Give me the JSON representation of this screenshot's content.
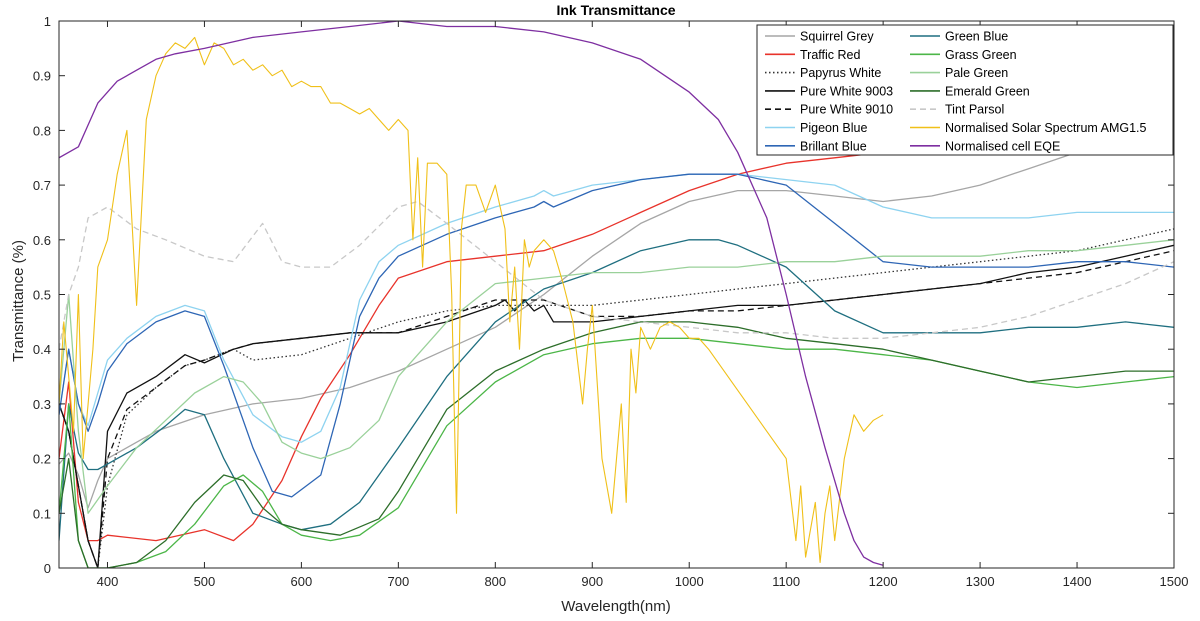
{
  "chart_data": {
    "type": "line",
    "title": "Ink Transmittance",
    "xlabel": "Wavelength(nm)",
    "ylabel": "Transmittance (%)",
    "xlim": [
      350,
      1500
    ],
    "ylim": [
      0,
      1
    ],
    "xticks": [
      400,
      500,
      600,
      700,
      800,
      900,
      1000,
      1100,
      1200,
      1300,
      1400,
      1500
    ],
    "yticks": [
      0,
      0.1,
      0.2,
      0.3,
      0.4,
      0.5,
      0.6,
      0.7,
      0.8,
      0.9,
      1
    ],
    "grid": false,
    "legend_position": "top-right",
    "legend_columns": 2,
    "series": [
      {
        "name": "Squirrel Grey",
        "color": "#a6a6a6",
        "style": "solid",
        "x": [
          350,
          360,
          370,
          380,
          390,
          400,
          420,
          450,
          500,
          550,
          600,
          650,
          700,
          750,
          800,
          850,
          900,
          950,
          1000,
          1050,
          1100,
          1150,
          1200,
          1250,
          1300,
          1350,
          1400,
          1450,
          1500
        ],
        "y": [
          0.19,
          0.21,
          0.17,
          0.11,
          0.16,
          0.2,
          0.22,
          0.25,
          0.28,
          0.3,
          0.31,
          0.33,
          0.36,
          0.4,
          0.44,
          0.5,
          0.57,
          0.63,
          0.67,
          0.69,
          0.69,
          0.68,
          0.67,
          0.68,
          0.7,
          0.73,
          0.76,
          0.79,
          0.82
        ]
      },
      {
        "name": "Traffic Red",
        "color": "#e8332b",
        "style": "solid",
        "x": [
          350,
          360,
          370,
          380,
          390,
          400,
          450,
          500,
          530,
          550,
          580,
          600,
          620,
          650,
          680,
          700,
          750,
          800,
          850,
          900,
          950,
          1000,
          1050,
          1100,
          1150,
          1200,
          1250,
          1300,
          1400,
          1500
        ],
        "y": [
          0.2,
          0.34,
          0.12,
          0.05,
          0.05,
          0.06,
          0.05,
          0.07,
          0.05,
          0.08,
          0.16,
          0.24,
          0.31,
          0.39,
          0.48,
          0.53,
          0.56,
          0.57,
          0.58,
          0.61,
          0.65,
          0.69,
          0.72,
          0.74,
          0.75,
          0.76,
          0.77,
          0.78,
          0.8,
          0.82
        ]
      },
      {
        "name": "Papyrus White",
        "color": "#333333",
        "style": "dotted",
        "x": [
          350,
          360,
          370,
          380,
          390,
          400,
          420,
          450,
          480,
          500,
          530,
          550,
          600,
          650,
          700,
          750,
          800,
          850,
          900,
          950,
          1000,
          1050,
          1100,
          1150,
          1200,
          1250,
          1300,
          1350,
          1400,
          1450,
          1500
        ],
        "y": [
          0.3,
          0.25,
          0.15,
          0.05,
          0.0,
          0.15,
          0.28,
          0.33,
          0.37,
          0.38,
          0.4,
          0.38,
          0.39,
          0.42,
          0.45,
          0.47,
          0.48,
          0.48,
          0.48,
          0.49,
          0.5,
          0.51,
          0.52,
          0.53,
          0.54,
          0.55,
          0.56,
          0.57,
          0.58,
          0.6,
          0.62
        ]
      },
      {
        "name": "Pure White 9003",
        "color": "#111111",
        "style": "solid",
        "x": [
          350,
          360,
          370,
          380,
          390,
          400,
          420,
          450,
          480,
          500,
          530,
          550,
          600,
          650,
          700,
          750,
          800,
          810,
          820,
          830,
          840,
          850,
          860,
          900,
          950,
          1000,
          1050,
          1100,
          1150,
          1200,
          1250,
          1300,
          1350,
          1400,
          1450,
          1500
        ],
        "y": [
          0.3,
          0.25,
          0.15,
          0.05,
          0.0,
          0.25,
          0.32,
          0.35,
          0.39,
          0.375,
          0.4,
          0.41,
          0.42,
          0.43,
          0.43,
          0.45,
          0.48,
          0.49,
          0.47,
          0.49,
          0.47,
          0.48,
          0.45,
          0.45,
          0.46,
          0.47,
          0.48,
          0.48,
          0.49,
          0.5,
          0.51,
          0.52,
          0.54,
          0.55,
          0.57,
          0.59
        ]
      },
      {
        "name": "Pure White 9010",
        "color": "#111111",
        "style": "dashed",
        "x": [
          350,
          360,
          370,
          380,
          390,
          400,
          420,
          450,
          480,
          500,
          530,
          550,
          600,
          650,
          700,
          750,
          800,
          850,
          900,
          950,
          1000,
          1050,
          1100,
          1150,
          1200,
          1250,
          1300,
          1350,
          1400,
          1450,
          1500
        ],
        "y": [
          0.3,
          0.25,
          0.15,
          0.05,
          0.0,
          0.2,
          0.29,
          0.33,
          0.37,
          0.38,
          0.4,
          0.41,
          0.42,
          0.43,
          0.43,
          0.46,
          0.49,
          0.49,
          0.46,
          0.46,
          0.47,
          0.47,
          0.48,
          0.49,
          0.5,
          0.51,
          0.52,
          0.53,
          0.54,
          0.56,
          0.58
        ]
      },
      {
        "name": "Pigeon Blue",
        "color": "#8ed3f0",
        "style": "solid",
        "x": [
          350,
          360,
          370,
          380,
          390,
          400,
          420,
          450,
          480,
          500,
          520,
          550,
          580,
          600,
          620,
          640,
          660,
          680,
          700,
          750,
          800,
          840,
          850,
          860,
          900,
          950,
          1000,
          1050,
          1100,
          1150,
          1200,
          1250,
          1300,
          1350,
          1400,
          1450,
          1500
        ],
        "y": [
          0.28,
          0.4,
          0.3,
          0.26,
          0.32,
          0.38,
          0.42,
          0.46,
          0.48,
          0.47,
          0.38,
          0.28,
          0.24,
          0.23,
          0.25,
          0.33,
          0.49,
          0.56,
          0.59,
          0.63,
          0.66,
          0.68,
          0.69,
          0.68,
          0.7,
          0.71,
          0.72,
          0.72,
          0.71,
          0.7,
          0.66,
          0.64,
          0.64,
          0.64,
          0.65,
          0.65,
          0.65
        ]
      },
      {
        "name": "Brillant Blue",
        "color": "#2e66b5",
        "style": "solid",
        "x": [
          350,
          360,
          370,
          380,
          390,
          400,
          420,
          450,
          480,
          500,
          520,
          550,
          570,
          590,
          620,
          640,
          660,
          680,
          700,
          750,
          800,
          840,
          850,
          860,
          900,
          950,
          1000,
          1050,
          1100,
          1150,
          1200,
          1250,
          1300,
          1350,
          1400,
          1450,
          1500
        ],
        "y": [
          0.28,
          0.4,
          0.3,
          0.25,
          0.3,
          0.36,
          0.41,
          0.45,
          0.47,
          0.46,
          0.37,
          0.22,
          0.14,
          0.13,
          0.17,
          0.3,
          0.46,
          0.53,
          0.57,
          0.61,
          0.64,
          0.66,
          0.67,
          0.66,
          0.69,
          0.71,
          0.72,
          0.72,
          0.7,
          0.63,
          0.56,
          0.55,
          0.55,
          0.55,
          0.56,
          0.56,
          0.55
        ]
      },
      {
        "name": "Green Blue",
        "color": "#1f6f80",
        "style": "solid",
        "x": [
          350,
          360,
          370,
          380,
          390,
          400,
          430,
          460,
          480,
          500,
          520,
          550,
          580,
          600,
          630,
          660,
          700,
          750,
          800,
          850,
          900,
          950,
          1000,
          1030,
          1050,
          1100,
          1150,
          1200,
          1250,
          1300,
          1350,
          1400,
          1450,
          1500
        ],
        "y": [
          0.05,
          0.3,
          0.21,
          0.18,
          0.18,
          0.19,
          0.22,
          0.26,
          0.29,
          0.28,
          0.2,
          0.1,
          0.08,
          0.07,
          0.08,
          0.12,
          0.22,
          0.35,
          0.45,
          0.51,
          0.54,
          0.58,
          0.6,
          0.6,
          0.59,
          0.55,
          0.47,
          0.43,
          0.43,
          0.43,
          0.44,
          0.44,
          0.45,
          0.44
        ]
      },
      {
        "name": "Grass Green",
        "color": "#4cb648",
        "style": "solid",
        "x": [
          350,
          360,
          370,
          380,
          400,
          430,
          460,
          490,
          520,
          540,
          560,
          580,
          600,
          630,
          660,
          700,
          750,
          800,
          850,
          900,
          950,
          1000,
          1050,
          1100,
          1150,
          1200,
          1250,
          1300,
          1350,
          1400,
          1450,
          1500
        ],
        "y": [
          0.1,
          0.3,
          0.05,
          0.0,
          0.0,
          0.01,
          0.03,
          0.08,
          0.15,
          0.17,
          0.14,
          0.08,
          0.06,
          0.05,
          0.06,
          0.11,
          0.26,
          0.34,
          0.39,
          0.41,
          0.42,
          0.42,
          0.41,
          0.4,
          0.4,
          0.39,
          0.38,
          0.36,
          0.34,
          0.33,
          0.34,
          0.35
        ]
      },
      {
        "name": "Pale Green",
        "color": "#9ad19a",
        "style": "solid",
        "x": [
          350,
          360,
          370,
          380,
          400,
          430,
          460,
          490,
          520,
          540,
          560,
          580,
          600,
          620,
          650,
          680,
          700,
          750,
          800,
          850,
          900,
          950,
          1000,
          1050,
          1100,
          1150,
          1200,
          1250,
          1300,
          1350,
          1400,
          1450,
          1500
        ],
        "y": [
          0.3,
          0.5,
          0.25,
          0.1,
          0.15,
          0.22,
          0.27,
          0.32,
          0.35,
          0.34,
          0.3,
          0.23,
          0.21,
          0.2,
          0.22,
          0.27,
          0.35,
          0.45,
          0.52,
          0.53,
          0.54,
          0.54,
          0.55,
          0.55,
          0.56,
          0.56,
          0.57,
          0.57,
          0.57,
          0.58,
          0.58,
          0.59,
          0.6
        ]
      },
      {
        "name": "Emerald Green",
        "color": "#2d6e2a",
        "style": "solid",
        "x": [
          350,
          360,
          370,
          380,
          400,
          430,
          460,
          490,
          520,
          540,
          560,
          580,
          600,
          640,
          680,
          700,
          750,
          800,
          850,
          900,
          950,
          1000,
          1050,
          1100,
          1150,
          1200,
          1250,
          1300,
          1350,
          1400,
          1450,
          1500
        ],
        "y": [
          0.1,
          0.2,
          0.05,
          0.0,
          0.0,
          0.01,
          0.05,
          0.12,
          0.17,
          0.16,
          0.11,
          0.08,
          0.07,
          0.06,
          0.09,
          0.14,
          0.29,
          0.36,
          0.4,
          0.43,
          0.45,
          0.45,
          0.44,
          0.42,
          0.41,
          0.4,
          0.38,
          0.36,
          0.34,
          0.35,
          0.36,
          0.36
        ]
      },
      {
        "name": "Tint Parsol",
        "color": "#c8c8c8",
        "style": "dashed",
        "x": [
          350,
          360,
          370,
          380,
          400,
          430,
          460,
          500,
          530,
          560,
          580,
          600,
          630,
          660,
          700,
          720,
          750,
          800,
          850,
          900,
          950,
          1000,
          1050,
          1100,
          1150,
          1200,
          1250,
          1300,
          1350,
          1400,
          1450,
          1500
        ],
        "y": [
          0.4,
          0.5,
          0.55,
          0.64,
          0.66,
          0.62,
          0.6,
          0.57,
          0.56,
          0.63,
          0.56,
          0.55,
          0.55,
          0.59,
          0.66,
          0.67,
          0.63,
          0.56,
          0.49,
          0.46,
          0.45,
          0.44,
          0.43,
          0.43,
          0.42,
          0.42,
          0.43,
          0.44,
          0.46,
          0.49,
          0.52,
          0.56
        ]
      },
      {
        "name": "Normalised Solar Spectrum AMG1.5",
        "color": "#f0c019",
        "style": "solid",
        "x": [
          350,
          355,
          360,
          365,
          370,
          375,
          380,
          385,
          390,
          400,
          410,
          420,
          430,
          440,
          450,
          460,
          470,
          480,
          490,
          500,
          510,
          520,
          530,
          540,
          550,
          560,
          570,
          580,
          590,
          600,
          610,
          620,
          630,
          640,
          650,
          660,
          670,
          680,
          690,
          700,
          710,
          715,
          720,
          725,
          730,
          740,
          750,
          755,
          760,
          762,
          765,
          770,
          780,
          790,
          800,
          810,
          815,
          820,
          825,
          830,
          835,
          840,
          850,
          860,
          870,
          880,
          890,
          895,
          900,
          910,
          920,
          930,
          935,
          940,
          945,
          950,
          960,
          970,
          980,
          990,
          1000,
          1010,
          1020,
          1040,
          1060,
          1080,
          1100,
          1110,
          1115,
          1120,
          1130,
          1135,
          1140,
          1145,
          1150,
          1160,
          1170,
          1180,
          1190,
          1200
        ],
        "y": [
          0.3,
          0.45,
          0.35,
          0.25,
          0.5,
          0.2,
          0.3,
          0.4,
          0.55,
          0.6,
          0.72,
          0.8,
          0.48,
          0.82,
          0.9,
          0.94,
          0.96,
          0.95,
          0.97,
          0.92,
          0.96,
          0.95,
          0.92,
          0.93,
          0.91,
          0.92,
          0.9,
          0.91,
          0.88,
          0.89,
          0.88,
          0.88,
          0.85,
          0.85,
          0.84,
          0.83,
          0.84,
          0.82,
          0.8,
          0.82,
          0.8,
          0.6,
          0.75,
          0.55,
          0.74,
          0.74,
          0.72,
          0.5,
          0.1,
          0.3,
          0.62,
          0.7,
          0.7,
          0.65,
          0.7,
          0.62,
          0.45,
          0.55,
          0.4,
          0.6,
          0.55,
          0.58,
          0.6,
          0.58,
          0.52,
          0.45,
          0.3,
          0.4,
          0.48,
          0.2,
          0.1,
          0.3,
          0.12,
          0.4,
          0.32,
          0.44,
          0.4,
          0.44,
          0.45,
          0.44,
          0.42,
          0.42,
          0.4,
          0.35,
          0.3,
          0.25,
          0.2,
          0.05,
          0.15,
          0.02,
          0.12,
          0.01,
          0.1,
          0.15,
          0.05,
          0.2,
          0.28,
          0.25,
          0.27,
          0.28
        ]
      },
      {
        "name": "Normalised cell EQE",
        "color": "#7e2fa1",
        "style": "solid",
        "x": [
          350,
          370,
          390,
          410,
          430,
          450,
          470,
          500,
          550,
          600,
          650,
          700,
          750,
          800,
          850,
          900,
          950,
          1000,
          1030,
          1050,
          1070,
          1080,
          1100,
          1120,
          1140,
          1160,
          1170,
          1180,
          1190,
          1200
        ],
        "y": [
          0.75,
          0.77,
          0.85,
          0.89,
          0.91,
          0.93,
          0.94,
          0.95,
          0.97,
          0.98,
          0.99,
          1.0,
          0.99,
          0.99,
          0.98,
          0.96,
          0.93,
          0.87,
          0.82,
          0.76,
          0.68,
          0.64,
          0.5,
          0.35,
          0.22,
          0.1,
          0.05,
          0.02,
          0.01,
          0.005
        ]
      }
    ]
  }
}
